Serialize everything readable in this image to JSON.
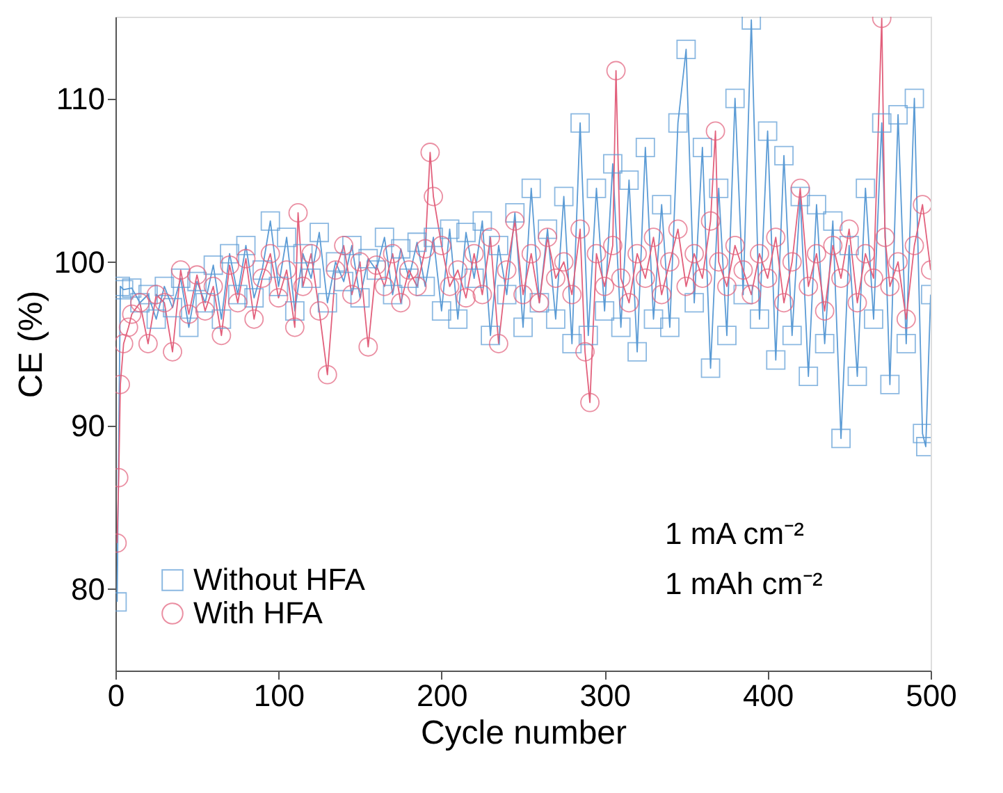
{
  "chart_data": {
    "type": "line",
    "xlabel": "Cycle number",
    "ylabel": "CE (%)",
    "xlim": [
      0,
      500
    ],
    "xticks": [
      0,
      100,
      200,
      300,
      400,
      500
    ],
    "ylim": [
      75,
      115
    ],
    "yticks": [
      80,
      90,
      100,
      110
    ],
    "grid": false,
    "legend": "bottom left",
    "line_style": "solid",
    "annotations": [
      "1 mA cm⁻²",
      "1 mAh cm⁻²"
    ],
    "series": [
      {
        "name": "Without HFA",
        "color": "#5b9bd5",
        "marker": "square",
        "x": [
          1,
          3,
          5,
          10,
          15,
          20,
          25,
          30,
          35,
          40,
          45,
          50,
          55,
          60,
          65,
          70,
          75,
          80,
          85,
          90,
          95,
          100,
          105,
          110,
          115,
          120,
          125,
          130,
          135,
          140,
          145,
          150,
          155,
          160,
          165,
          170,
          175,
          180,
          185,
          190,
          195,
          200,
          205,
          210,
          215,
          220,
          225,
          230,
          235,
          240,
          245,
          250,
          255,
          260,
          265,
          270,
          275,
          280,
          285,
          290,
          295,
          300,
          305,
          310,
          315,
          320,
          325,
          330,
          335,
          340,
          345,
          350,
          355,
          360,
          365,
          370,
          375,
          380,
          385,
          390,
          395,
          400,
          405,
          410,
          415,
          420,
          425,
          430,
          435,
          440,
          445,
          450,
          455,
          460,
          465,
          470,
          475,
          480,
          485,
          490,
          495,
          497,
          500
        ],
        "values": [
          79.2,
          98.5,
          98.3,
          98.4,
          97.5,
          98.0,
          96.5,
          98.5,
          97.2,
          99.0,
          96.0,
          98.8,
          97.5,
          99.8,
          96.5,
          100.5,
          98.0,
          101.0,
          97.8,
          99.5,
          102.5,
          98.5,
          101.5,
          97.0,
          100.5,
          99.0,
          101.8,
          97.5,
          100.0,
          98.8,
          101.0,
          97.8,
          100.2,
          99.5,
          101.5,
          98.0,
          100.8,
          99.0,
          101.2,
          98.5,
          101.5,
          97.0,
          102.0,
          96.5,
          101.8,
          99.0,
          102.5,
          95.5,
          101.0,
          98.0,
          103.0,
          96.0,
          104.5,
          97.5,
          102.0,
          96.5,
          104.0,
          95.0,
          108.5,
          95.5,
          104.5,
          97.0,
          106.0,
          96.0,
          105.0,
          94.5,
          107.0,
          96.5,
          103.5,
          96.0,
          108.5,
          113.0,
          97.5,
          107.0,
          93.5,
          104.5,
          95.5,
          110.0,
          98.0,
          114.8,
          96.5,
          108.0,
          94.0,
          106.5,
          95.5,
          104.0,
          93.0,
          103.5,
          95.0,
          102.5,
          89.2,
          101.0,
          93.0,
          104.5,
          96.5,
          108.5,
          92.5,
          109.0,
          95.0,
          110.0,
          89.5,
          88.7,
          98.0
        ]
      },
      {
        "name": "With HFA",
        "color": "#e2607c",
        "marker": "circle",
        "x": [
          1,
          2,
          3,
          5,
          8,
          10,
          15,
          20,
          25,
          30,
          35,
          40,
          45,
          50,
          55,
          60,
          65,
          70,
          75,
          80,
          85,
          90,
          95,
          100,
          105,
          110,
          112,
          115,
          120,
          125,
          130,
          135,
          140,
          145,
          150,
          155,
          160,
          165,
          170,
          175,
          180,
          185,
          190,
          193,
          195,
          200,
          205,
          210,
          215,
          220,
          225,
          230,
          235,
          240,
          245,
          250,
          255,
          260,
          265,
          270,
          275,
          280,
          285,
          288,
          291,
          295,
          300,
          305,
          307,
          310,
          315,
          320,
          325,
          330,
          335,
          340,
          345,
          350,
          355,
          360,
          365,
          368,
          370,
          375,
          380,
          385,
          390,
          395,
          400,
          405,
          410,
          415,
          420,
          425,
          430,
          435,
          440,
          445,
          450,
          455,
          460,
          465,
          470,
          472,
          475,
          480,
          485,
          490,
          495,
          500
        ],
        "values": [
          82.8,
          86.8,
          92.5,
          95.0,
          96.0,
          96.8,
          97.5,
          95.0,
          98.0,
          97.5,
          94.5,
          99.5,
          96.8,
          99.2,
          97.0,
          98.5,
          95.5,
          99.8,
          97.5,
          100.2,
          96.5,
          99.0,
          100.5,
          97.8,
          99.5,
          96.0,
          103.0,
          98.5,
          100.5,
          97.0,
          93.1,
          99.5,
          101.0,
          98.0,
          100.0,
          94.8,
          99.8,
          98.5,
          100.5,
          97.5,
          99.5,
          98.5,
          100.8,
          106.7,
          104.0,
          101.0,
          98.5,
          99.5,
          97.8,
          100.5,
          98.0,
          101.5,
          95.0,
          99.5,
          102.5,
          98.0,
          100.5,
          97.5,
          101.5,
          99.0,
          100.0,
          98.0,
          102.0,
          94.5,
          91.4,
          100.5,
          98.5,
          101.0,
          111.7,
          99.0,
          97.5,
          100.5,
          99.0,
          101.5,
          98.0,
          100.0,
          102.0,
          98.5,
          100.5,
          99.0,
          102.5,
          108.0,
          100.0,
          98.5,
          101.0,
          99.5,
          98.0,
          100.5,
          99.0,
          101.5,
          97.5,
          100.0,
          104.5,
          98.5,
          100.5,
          97.0,
          101.0,
          99.0,
          102.0,
          97.5,
          100.5,
          99.0,
          114.9,
          101.5,
          98.5,
          100.0,
          96.5,
          101.0,
          103.5,
          99.5
        ]
      }
    ]
  }
}
